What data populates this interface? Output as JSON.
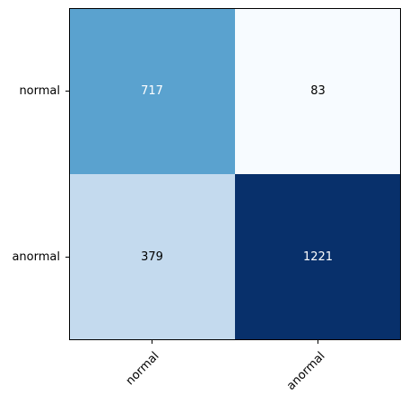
{
  "chart_data": {
    "type": "heatmap",
    "title": "",
    "xlabel": "",
    "ylabel": "",
    "x_categories": [
      "normal",
      "anormal"
    ],
    "y_categories": [
      "normal",
      "anormal"
    ],
    "values": [
      [
        717,
        83
      ],
      [
        379,
        1221
      ]
    ],
    "colormap": "Blues",
    "value_range": [
      83,
      1221
    ],
    "grid": false,
    "x_tick_rotation_deg": 45
  },
  "colors": {
    "cell_0_0": "#5aa2cf",
    "cell_0_1": "#f7fbff",
    "cell_1_0": "#c4daee",
    "cell_1_1": "#08306b",
    "text_dark": "#000000",
    "text_light": "#ffffff"
  }
}
